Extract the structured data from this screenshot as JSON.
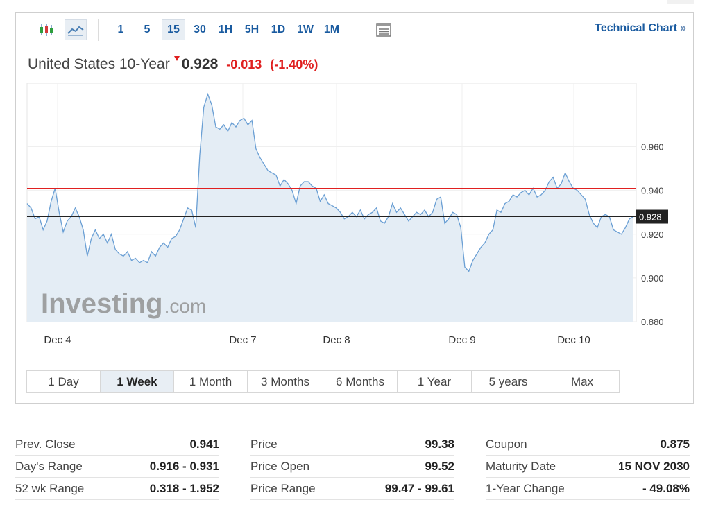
{
  "toolbar": {
    "candlestick_icon": "candlestick-chart-icon",
    "line_icon": "line-chart-icon",
    "table_icon": "data-table-icon",
    "intervals": [
      "1",
      "5",
      "15",
      "30",
      "1H",
      "5H",
      "1D",
      "1W",
      "1M"
    ],
    "active_interval": "15",
    "technical_chart_label": "Technical Chart",
    "technical_chart_arrow": "»"
  },
  "quote": {
    "name": "United States 10-Year",
    "direction": "down",
    "last": "0.928",
    "change": "-0.013",
    "change_pct": "(-1.40%)"
  },
  "watermark": "Investing",
  "watermark_suffix": ".com",
  "chart_data": {
    "type": "area",
    "x_ticks": [
      "Dec 4",
      "Dec 7",
      "Dec 8",
      "Dec 9",
      "Dec 10"
    ],
    "y_ticks": [
      0.88,
      0.9,
      0.92,
      0.94,
      0.96
    ],
    "ylim": [
      0.88,
      0.989
    ],
    "reference_lines": [
      {
        "value": 0.941,
        "color": "#e02020"
      },
      {
        "value": 0.928,
        "color": "#222222",
        "label": "0.928"
      }
    ],
    "series": [
      {
        "color": "#6a9fd4",
        "values": [
          0.934,
          0.932,
          0.927,
          0.928,
          0.922,
          0.926,
          0.935,
          0.941,
          0.93,
          0.921,
          0.926,
          0.928,
          0.932,
          0.928,
          0.922,
          0.91,
          0.918,
          0.922,
          0.918,
          0.92,
          0.916,
          0.92,
          0.913,
          0.911,
          0.91,
          0.912,
          0.908,
          0.909,
          0.907,
          0.908,
          0.907,
          0.912,
          0.91,
          0.914,
          0.916,
          0.914,
          0.918,
          0.919,
          0.922,
          0.927,
          0.932,
          0.931,
          0.923,
          0.956,
          0.978,
          0.984,
          0.979,
          0.969,
          0.968,
          0.97,
          0.967,
          0.971,
          0.969,
          0.972,
          0.973,
          0.97,
          0.972,
          0.959,
          0.955,
          0.952,
          0.949,
          0.948,
          0.947,
          0.942,
          0.945,
          0.943,
          0.94,
          0.934,
          0.942,
          0.944,
          0.944,
          0.942,
          0.941,
          0.935,
          0.938,
          0.934,
          0.933,
          0.932,
          0.93,
          0.927,
          0.928,
          0.93,
          0.928,
          0.931,
          0.927,
          0.929,
          0.93,
          0.932,
          0.926,
          0.925,
          0.928,
          0.934,
          0.93,
          0.932,
          0.929,
          0.926,
          0.928,
          0.93,
          0.929,
          0.931,
          0.928,
          0.93,
          0.936,
          0.937,
          0.925,
          0.927,
          0.93,
          0.929,
          0.923,
          0.905,
          0.903,
          0.908,
          0.911,
          0.914,
          0.916,
          0.92,
          0.922,
          0.931,
          0.93,
          0.934,
          0.935,
          0.938,
          0.937,
          0.939,
          0.94,
          0.938,
          0.941,
          0.937,
          0.938,
          0.94,
          0.944,
          0.946,
          0.941,
          0.943,
          0.948,
          0.944,
          0.941,
          0.94,
          0.938,
          0.936,
          0.929,
          0.925,
          0.923,
          0.928,
          0.929,
          0.928,
          0.922,
          0.921,
          0.92,
          0.923,
          0.927,
          0.928
        ]
      }
    ]
  },
  "ranges": {
    "items": [
      "1 Day",
      "1 Week",
      "1 Month",
      "3 Months",
      "6 Months",
      "1 Year",
      "5 years",
      "Max"
    ],
    "active": "1 Week"
  },
  "stats": [
    [
      {
        "label": "Prev. Close",
        "value": "0.941"
      },
      {
        "label": "Day's Range",
        "value": "0.916 - 0.931"
      },
      {
        "label": "52 wk Range",
        "value": "0.318 - 1.952"
      }
    ],
    [
      {
        "label": "Price",
        "value": "99.38"
      },
      {
        "label": "Price Open",
        "value": "99.52"
      },
      {
        "label": "Price Range",
        "value": "99.47 - 99.61"
      }
    ],
    [
      {
        "label": "Coupon",
        "value": "0.875"
      },
      {
        "label": "Maturity Date",
        "value": "15 NOV 2030"
      },
      {
        "label": "1-Year Change",
        "value": "- 49.08%"
      }
    ]
  ],
  "colors": {
    "accent_blue": "#1a5ba0",
    "negative": "#e02020",
    "line": "#6a9fd4",
    "area_fill": "#e4edf5"
  }
}
